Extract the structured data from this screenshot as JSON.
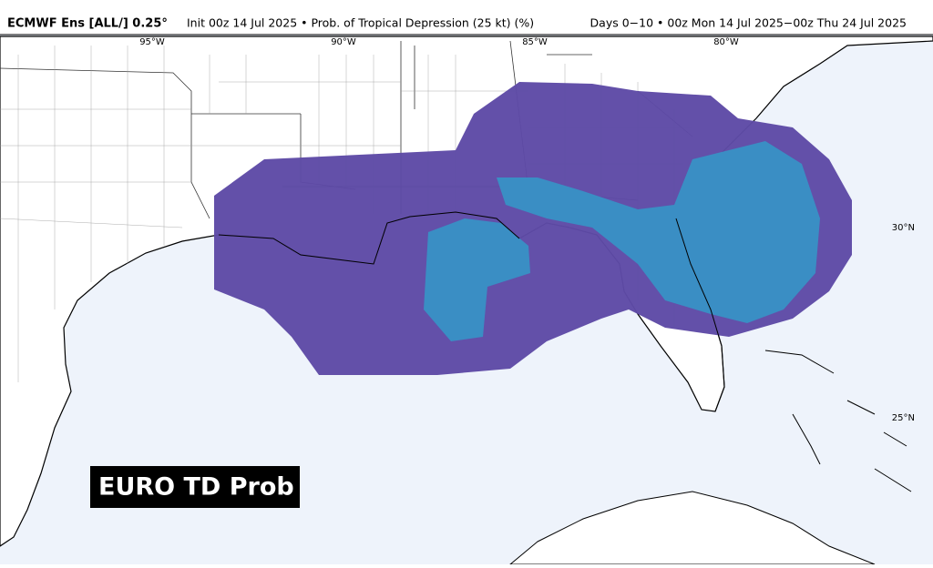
{
  "header": {
    "title": "ECMWF Ens [ALL/] 0.25°",
    "subtitle": "Init 00z 14 Jul 2025 • Prob. of Tropical Depression (25 kt) (%)",
    "valid": "Days 0−10 • 00z Mon 14 Jul 2025−00z Thu 24 Jul 2025"
  },
  "longitude_labels": [
    "95°W",
    "90°W",
    "85°W",
    "80°W"
  ],
  "latitude_labels": [
    "30°N",
    "25°N"
  ],
  "overlay_label": "EURO TD Prob"
}
